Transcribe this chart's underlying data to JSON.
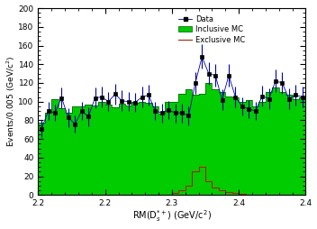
{
  "xmin": 2.2,
  "xmax": 2.4,
  "ymin": 0,
  "ymax": 200,
  "bin_width": 0.005,
  "xlabel": "RM(D$_{s}^{*+}$) (GeV/c$^{2}$)",
  "ylabel": "Events/0.005 (GeV/c$^{2}$)",
  "yticks": [
    0,
    20,
    40,
    60,
    80,
    100,
    120,
    140,
    160,
    180,
    200
  ],
  "xticks": [
    2.2,
    2.25,
    2.3,
    2.35,
    2.4
  ],
  "green_hist_values": [
    78,
    88,
    103,
    93,
    88,
    95,
    95,
    97,
    96,
    100,
    97,
    94,
    98,
    96,
    99,
    100,
    99,
    95,
    87,
    100,
    100,
    108,
    113,
    107,
    108,
    120,
    113,
    110,
    106,
    105,
    100,
    102,
    95,
    100,
    110,
    115,
    110,
    107,
    103,
    105
  ],
  "data_values": [
    71,
    90,
    88,
    104,
    83,
    76,
    90,
    84,
    104,
    105,
    100,
    108,
    101,
    100,
    99,
    105,
    107,
    90,
    88,
    91,
    88,
    88,
    85,
    120,
    148,
    130,
    128,
    102,
    128,
    105,
    95,
    92,
    90,
    106,
    103,
    122,
    120,
    103,
    107,
    105
  ],
  "data_errors": [
    9,
    10,
    9,
    11,
    10,
    9,
    10,
    10,
    11,
    11,
    10,
    11,
    11,
    10,
    10,
    11,
    11,
    10,
    10,
    10,
    10,
    10,
    10,
    12,
    13,
    12,
    12,
    11,
    12,
    11,
    10,
    10,
    10,
    11,
    11,
    12,
    12,
    11,
    11,
    11
  ],
  "exclusive_hist_values": [
    0,
    0,
    0,
    0,
    0,
    0,
    0,
    0,
    0,
    0,
    0,
    0,
    0,
    0,
    0,
    0,
    0,
    0,
    0,
    0,
    2,
    5,
    10,
    25,
    30,
    15,
    8,
    5,
    3,
    2,
    1,
    0,
    0,
    0,
    0,
    0,
    0,
    0,
    0,
    0
  ],
  "green_color": "#00cc00",
  "green_edge_color": "#005500",
  "red_color": "#aa2200",
  "data_color": "#0000aa",
  "marker_color": "#000000",
  "figwidth": 3.52,
  "figheight": 2.54,
  "dpi": 100
}
